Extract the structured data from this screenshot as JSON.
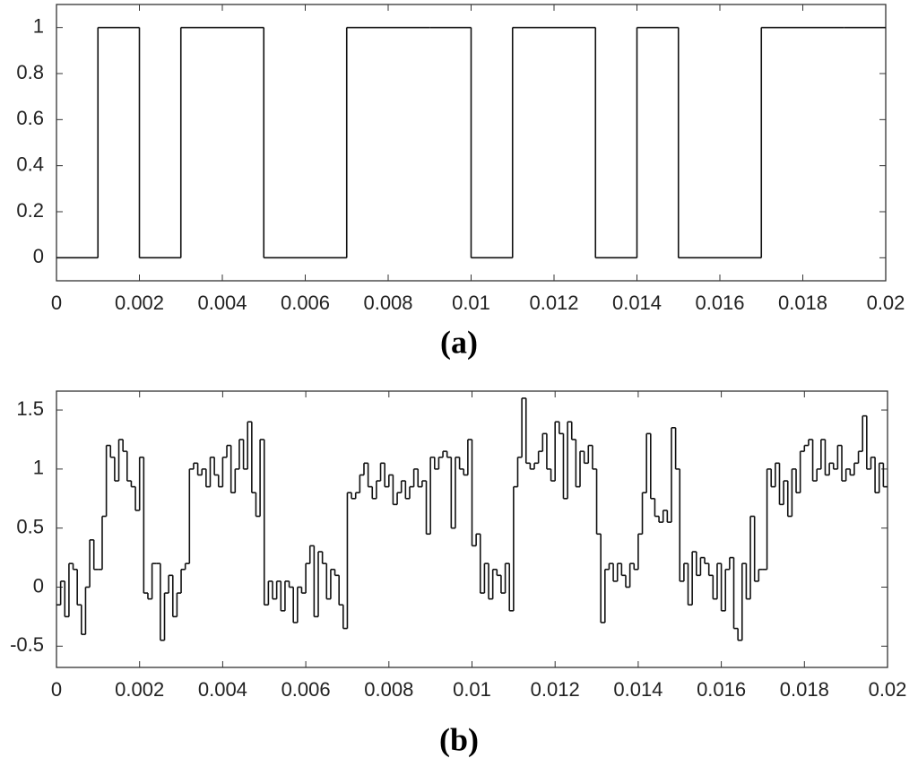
{
  "chart_data": [
    {
      "type": "step",
      "caption": "(a)",
      "x": [
        0,
        0.001,
        0.002,
        0.003,
        0.004,
        0.005,
        0.006,
        0.007,
        0.008,
        0.009,
        0.01,
        0.011,
        0.012,
        0.013,
        0.014,
        0.015,
        0.016,
        0.017,
        0.018,
        0.019
      ],
      "values": [
        0,
        1,
        0,
        1,
        1,
        0,
        0,
        1,
        1,
        1,
        0,
        1,
        1,
        0,
        1,
        0,
        0,
        1,
        1,
        1
      ],
      "color": "#111111",
      "xlim": [
        0,
        0.02
      ],
      "xticks": [
        0,
        0.002,
        0.004,
        0.006,
        0.008,
        0.01,
        0.012,
        0.014,
        0.016,
        0.018,
        0.02
      ],
      "ylim": [
        -0.1,
        1.1
      ],
      "yticks": [
        0,
        0.2,
        0.4,
        0.6,
        0.8,
        1
      ]
    },
    {
      "type": "step",
      "caption": "(b)",
      "x": [
        0,
        0.0001,
        0.0002,
        0.0003,
        0.0004,
        0.0005,
        0.0006,
        0.0007,
        0.0008,
        0.0009,
        0.001,
        0.0011,
        0.0012,
        0.0013,
        0.0014,
        0.0015,
        0.0016,
        0.0017,
        0.0018,
        0.0019,
        0.002,
        0.0021,
        0.0022,
        0.0023,
        0.0024,
        0.0025,
        0.0026,
        0.0027,
        0.0028,
        0.0029,
        0.003,
        0.0031,
        0.0032,
        0.0033,
        0.0034,
        0.0035,
        0.0036,
        0.0037,
        0.0038,
        0.0039,
        0.004,
        0.0041,
        0.0042,
        0.0043,
        0.0044,
        0.0045,
        0.0046,
        0.0047,
        0.0048,
        0.0049,
        0.005,
        0.0051,
        0.0052,
        0.0053,
        0.0054,
        0.0055,
        0.0056,
        0.0057,
        0.0058,
        0.0059,
        0.006,
        0.0061,
        0.0062,
        0.0063,
        0.0064,
        0.0065,
        0.0066,
        0.0067,
        0.0068,
        0.0069,
        0.007,
        0.0071,
        0.0072,
        0.0073,
        0.0074,
        0.0075,
        0.0076,
        0.0077,
        0.0078,
        0.0079,
        0.008,
        0.0081,
        0.0082,
        0.0083,
        0.0084,
        0.0085,
        0.0086,
        0.0087,
        0.0088,
        0.0089,
        0.009,
        0.0091,
        0.0092,
        0.0093,
        0.0094,
        0.0095,
        0.0096,
        0.0097,
        0.0098,
        0.0099,
        0.01,
        0.0101,
        0.0102,
        0.0103,
        0.0104,
        0.0105,
        0.0106,
        0.0107,
        0.0108,
        0.0109,
        0.011,
        0.0111,
        0.0112,
        0.0113,
        0.0114,
        0.0115,
        0.0116,
        0.0117,
        0.0118,
        0.0119,
        0.012,
        0.0121,
        0.0122,
        0.0123,
        0.0124,
        0.0125,
        0.0126,
        0.0127,
        0.0128,
        0.0129,
        0.013,
        0.0131,
        0.0132,
        0.0133,
        0.0134,
        0.0135,
        0.0136,
        0.0137,
        0.0138,
        0.0139,
        0.014,
        0.0141,
        0.0142,
        0.0143,
        0.0144,
        0.0145,
        0.0146,
        0.0147,
        0.0148,
        0.0149,
        0.015,
        0.0151,
        0.0152,
        0.0153,
        0.0154,
        0.0155,
        0.0156,
        0.0157,
        0.0158,
        0.0159,
        0.016,
        0.0161,
        0.0162,
        0.0163,
        0.0164,
        0.0165,
        0.0166,
        0.0167,
        0.0168,
        0.0169,
        0.017,
        0.0171,
        0.0172,
        0.0173,
        0.0174,
        0.0175,
        0.0176,
        0.0177,
        0.0178,
        0.0179,
        0.018,
        0.0181,
        0.0182,
        0.0183,
        0.0184,
        0.0185,
        0.0186,
        0.0187,
        0.0188,
        0.0189,
        0.019,
        0.0191,
        0.0192,
        0.0193,
        0.0194,
        0.0195,
        0.0196,
        0.0197,
        0.0198,
        0.0199
      ],
      "values": [
        -0.15,
        0.05,
        -0.25,
        0.2,
        0.15,
        -0.15,
        -0.4,
        0.0,
        0.4,
        0.15,
        0.15,
        0.6,
        1.2,
        1.1,
        0.9,
        1.25,
        1.15,
        0.9,
        0.85,
        0.65,
        1.1,
        -0.05,
        -0.1,
        0.2,
        0.2,
        -0.45,
        -0.05,
        0.1,
        -0.25,
        -0.05,
        0.15,
        0.2,
        1.0,
        1.05,
        0.95,
        1.0,
        0.85,
        1.1,
        0.95,
        0.85,
        1.1,
        1.2,
        0.8,
        1.0,
        1.25,
        1.0,
        1.4,
        0.8,
        0.6,
        1.25,
        -0.15,
        0.05,
        -0.1,
        0.05,
        -0.2,
        0.05,
        0.0,
        -0.3,
        0.0,
        -0.05,
        0.2,
        0.35,
        -0.25,
        0.3,
        0.2,
        -0.1,
        0.15,
        0.1,
        -0.15,
        -0.35,
        0.8,
        0.75,
        0.8,
        0.95,
        1.05,
        0.85,
        0.75,
        0.9,
        1.05,
        0.85,
        0.95,
        0.7,
        0.8,
        0.9,
        0.75,
        0.85,
        1.0,
        0.85,
        0.9,
        0.45,
        1.1,
        1.0,
        1.1,
        1.15,
        1.1,
        0.5,
        1.1,
        1.0,
        0.95,
        1.25,
        0.35,
        0.45,
        -0.05,
        0.2,
        -0.1,
        0.15,
        0.1,
        -0.05,
        0.2,
        -0.2,
        0.85,
        1.1,
        1.6,
        1.05,
        1.0,
        1.05,
        1.15,
        1.3,
        1.0,
        0.9,
        1.4,
        1.3,
        0.75,
        1.4,
        1.25,
        0.85,
        1.15,
        1.05,
        1.2,
        1.0,
        0.45,
        -0.3,
        0.15,
        0.2,
        0.05,
        0.2,
        0.1,
        0.0,
        0.2,
        0.15,
        0.45,
        0.8,
        1.3,
        0.75,
        0.6,
        0.55,
        0.65,
        0.55,
        1.35,
        1.0,
        0.05,
        0.2,
        -0.15,
        0.3,
        0.1,
        0.25,
        0.2,
        0.1,
        -0.1,
        0.2,
        -0.2,
        0.15,
        0.25,
        -0.35,
        -0.45,
        0.2,
        -0.1,
        0.6,
        0.05,
        0.15,
        0.15,
        1.0,
        0.85,
        1.05,
        0.7,
        0.9,
        0.6,
        1.0,
        0.8,
        1.15,
        1.2,
        1.25,
        0.9,
        1.0,
        1.25,
        0.95,
        1.05,
        1.0,
        1.2,
        0.9,
        1.0,
        0.95,
        1.05,
        1.15,
        1.45,
        1.0,
        1.1,
        0.8,
        1.05,
        0.85
      ],
      "color": "#111111",
      "xlim": [
        0,
        0.02
      ],
      "xticks": [
        0,
        0.002,
        0.004,
        0.006,
        0.008,
        0.01,
        0.012,
        0.014,
        0.016,
        0.018,
        0.02
      ],
      "ylim": [
        -0.68,
        1.66
      ],
      "yticks": [
        -0.5,
        0,
        0.5,
        1,
        1.5
      ]
    }
  ]
}
